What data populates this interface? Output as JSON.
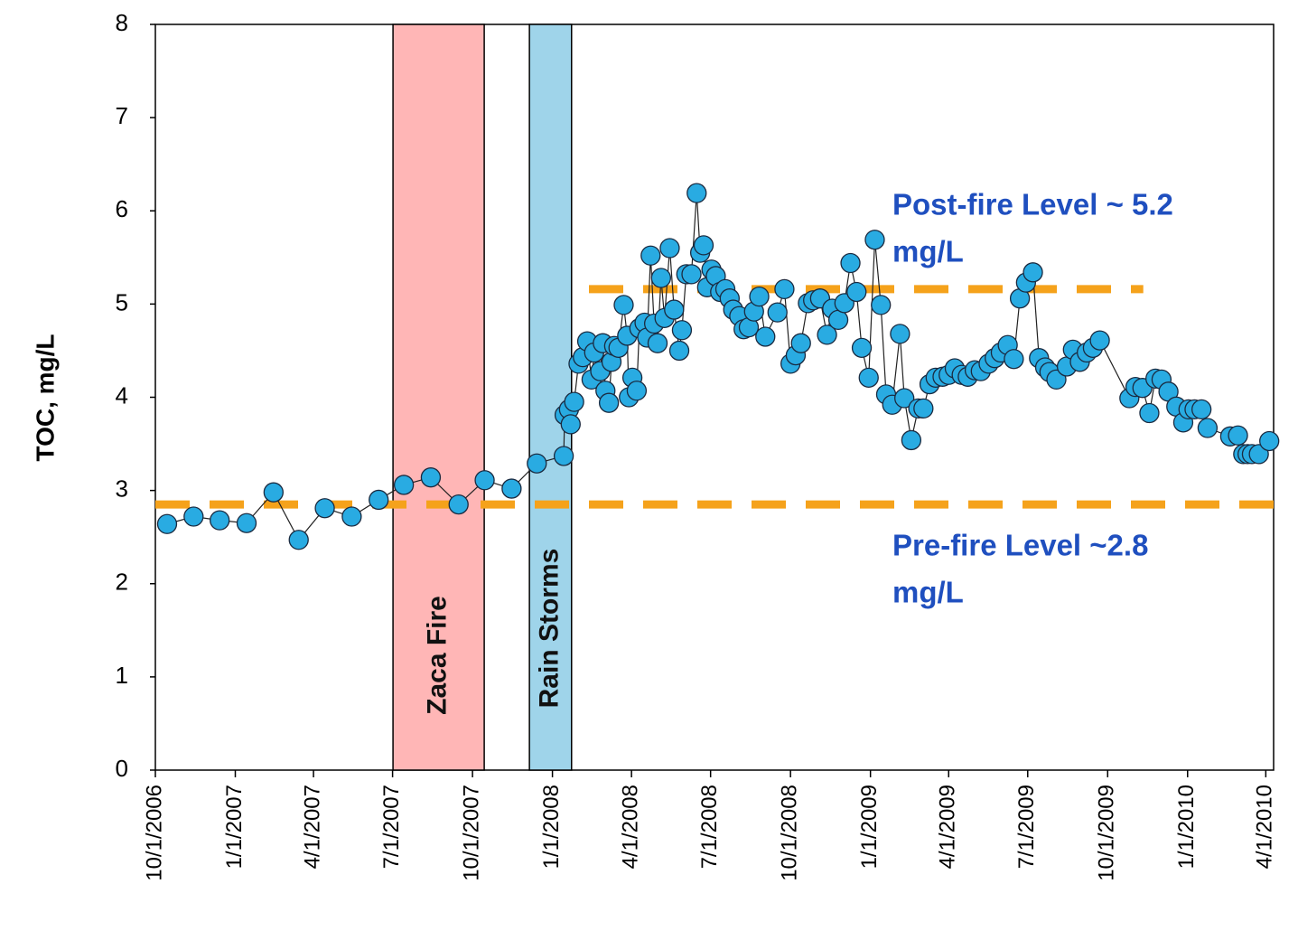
{
  "chart_data": {
    "type": "scatter",
    "y_label": "TOC, mg/L",
    "color": "#29abe2",
    "line_color": "#222222",
    "x": [
      13.5,
      44,
      74,
      105,
      136,
      165,
      195,
      226,
      257,
      286,
      317,
      349,
      379,
      410,
      439,
      470,
      471,
      476,
      478,
      482,
      487,
      492,
      497,
      502,
      505,
      512,
      515,
      518,
      522,
      525,
      528,
      533,
      539,
      543,
      545,
      549,
      554,
      557,
      563,
      566,
      570,
      574,
      578,
      582,
      586,
      592,
      597,
      603,
      606,
      611,
      617,
      623,
      627,
      631,
      635,
      640,
      645,
      650,
      656,
      661,
      665,
      672,
      677,
      683,
      689,
      695,
      702,
      716,
      724,
      731,
      737,
      743,
      751,
      757,
      765,
      773,
      779,
      786,
      793,
      800,
      807,
      813,
      821,
      828,
      835,
      841,
      848,
      857,
      862,
      870,
      878,
      884,
      891,
      898,
      906,
      913,
      920,
      928,
      935,
      943,
      950,
      959,
      966,
      973,
      981,
      988,
      995,
      1002,
      1010,
      1017,
      1024,
      1029,
      1037,
      1049,
      1056,
      1064,
      1072,
      1079,
      1087,
      1121,
      1128,
      1136,
      1144,
      1151,
      1158,
      1166,
      1175,
      1183,
      1189,
      1196,
      1204,
      1211,
      1237,
      1246,
      1252,
      1257,
      1262,
      1270,
      1282
    ],
    "values": [
      2.64,
      2.72,
      2.68,
      2.65,
      2.98,
      2.47,
      2.81,
      2.72,
      2.9,
      3.06,
      3.14,
      2.85,
      3.11,
      3.02,
      3.29,
      3.37,
      3.81,
      3.87,
      3.71,
      3.95,
      4.36,
      4.43,
      4.6,
      4.19,
      4.48,
      4.28,
      4.58,
      4.07,
      3.94,
      4.38,
      4.55,
      4.53,
      4.99,
      4.66,
      4.0,
      4.21,
      4.07,
      4.74,
      4.8,
      4.64,
      5.52,
      4.79,
      4.58,
      5.28,
      4.85,
      5.6,
      4.94,
      4.5,
      4.72,
      5.32,
      5.32,
      6.19,
      5.55,
      5.63,
      5.18,
      5.37,
      5.3,
      5.13,
      5.16,
      5.06,
      4.94,
      4.87,
      4.73,
      4.75,
      4.92,
      5.08,
      4.65,
      4.91,
      5.16,
      4.36,
      4.45,
      4.58,
      5.01,
      5.04,
      5.06,
      4.67,
      4.95,
      4.83,
      5.01,
      5.44,
      5.13,
      4.53,
      4.21,
      5.69,
      4.99,
      4.03,
      3.92,
      4.68,
      3.99,
      3.54,
      3.88,
      3.88,
      4.14,
      4.21,
      4.22,
      4.24,
      4.31,
      4.24,
      4.22,
      4.29,
      4.28,
      4.36,
      4.42,
      4.48,
      4.56,
      4.41,
      5.06,
      5.23,
      5.34,
      4.42,
      4.32,
      4.27,
      4.19,
      4.33,
      4.51,
      4.38,
      4.48,
      4.53,
      4.61,
      3.99,
      4.11,
      4.1,
      3.83,
      4.2,
      4.19,
      4.06,
      3.9,
      3.73,
      3.87,
      3.87,
      3.87,
      3.67,
      3.58,
      3.59,
      3.39,
      3.39,
      3.39,
      3.39,
      3.53
    ],
    "xlim": [
      0,
      1287
    ],
    "xticks": [
      {
        "value": 0,
        "label": "10/1/2006"
      },
      {
        "value": 92,
        "label": "1/1/2007"
      },
      {
        "value": 182,
        "label": "4/1/2007"
      },
      {
        "value": 273,
        "label": "7/1/2007"
      },
      {
        "value": 365,
        "label": "10/1/2007"
      },
      {
        "value": 457,
        "label": "1/1/2008"
      },
      {
        "value": 548,
        "label": "4/1/2008"
      },
      {
        "value": 639,
        "label": "7/1/2008"
      },
      {
        "value": 731,
        "label": "10/1/2008"
      },
      {
        "value": 823,
        "label": "1/1/2009"
      },
      {
        "value": 913,
        "label": "4/1/2009"
      },
      {
        "value": 1004,
        "label": "7/1/2009"
      },
      {
        "value": 1096,
        "label": "10/1/2009"
      },
      {
        "value": 1188,
        "label": "1/1/2010"
      },
      {
        "value": 1278,
        "label": "4/1/2010"
      }
    ],
    "ylim": [
      0,
      8
    ],
    "yticks": [
      0,
      1,
      2,
      3,
      4,
      5,
      6,
      7,
      8
    ],
    "bands": [
      {
        "label": "Zaca Fire",
        "x": [
          273.5,
          378.5
        ],
        "color": "#ffb6b6"
      },
      {
        "label": "Rain Storms",
        "x": [
          430.5,
          479
        ],
        "color": "#9fd4ea"
      }
    ],
    "reference_lines": [
      {
        "value": 2.85,
        "x": [
          0,
          1287
        ],
        "color": "#f5a21b",
        "label_lines": [
          "Pre-fire Level ~2.8",
          "mg/L"
        ]
      },
      {
        "value": 5.16,
        "x": [
          499,
          1137
        ],
        "color": "#f5a21b",
        "label_lines": [
          "Post-fire Level ~ 5.2",
          "mg/L"
        ]
      }
    ]
  }
}
